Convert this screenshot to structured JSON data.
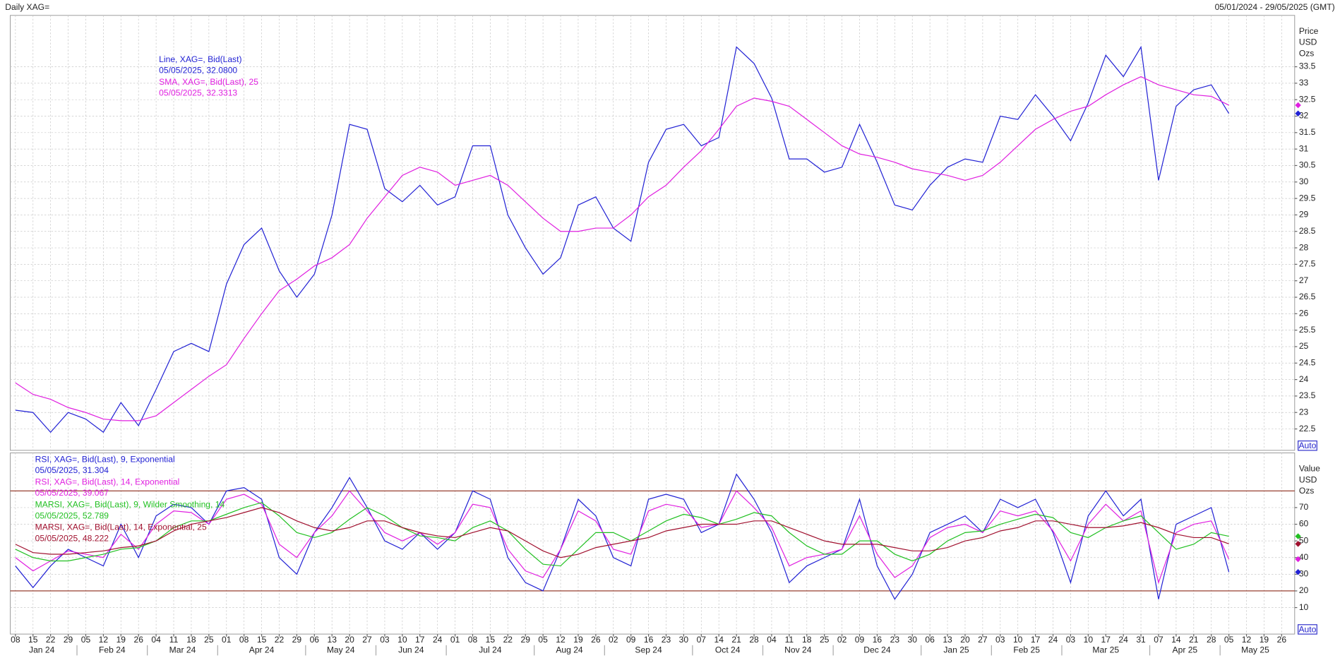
{
  "header": {
    "title": "Daily XAG=",
    "range": "05/01/2024 - 29/05/2025 (GMT)"
  },
  "chart_data": [
    {
      "type": "line",
      "y_label": [
        "Price",
        "USD",
        "Ozs"
      ],
      "auto": "Auto",
      "grid": true,
      "categories": [
        "08",
        "15",
        "22",
        "29",
        "05",
        "12",
        "19",
        "26",
        "04",
        "11",
        "18",
        "25",
        "01",
        "08",
        "15",
        "22",
        "29",
        "06",
        "13",
        "20",
        "27",
        "03",
        "10",
        "17",
        "24",
        "01",
        "08",
        "15",
        "22",
        "29",
        "05",
        "12",
        "19",
        "26",
        "02",
        "09",
        "16",
        "23",
        "30",
        "07",
        "14",
        "21",
        "28",
        "04",
        "11",
        "18",
        "25",
        "02",
        "09",
        "16",
        "23",
        "30",
        "06",
        "13",
        "20",
        "27",
        "03",
        "10",
        "17",
        "24",
        "03",
        "10",
        "17",
        "24",
        "31",
        "07",
        "14",
        "21",
        "28",
        "05",
        "12",
        "19",
        "26"
      ],
      "months": [
        "Jan 24",
        "Feb 24",
        "Mar 24",
        "Apr 24",
        "May 24",
        "Jun 24",
        "Jul 24",
        "Aug 24",
        "Sep 24",
        "Oct 24",
        "Nov 24",
        "Dec 24",
        "Jan 25",
        "Feb 25",
        "Mar 25",
        "Apr 25",
        "May 25"
      ],
      "ylim": [
        21.85,
        35.06
      ],
      "yticks": [
        22.5,
        23,
        23.5,
        24,
        24.5,
        25,
        25.5,
        26,
        26.5,
        27,
        27.5,
        28,
        28.5,
        29,
        29.5,
        30,
        30.5,
        31,
        31.5,
        32,
        32.5,
        33,
        33.5
      ],
      "series": [
        {
          "name": "Line, XAG=, Bid(Last)",
          "legend_value": "05/05/2025, 32.0800",
          "color": "#2121d4",
          "values": [
            23.07,
            23.0,
            22.4,
            23.0,
            22.8,
            22.4,
            23.3,
            22.6,
            23.7,
            24.85,
            25.1,
            24.85,
            26.9,
            28.1,
            28.6,
            27.3,
            26.5,
            27.2,
            29.0,
            31.75,
            31.6,
            29.8,
            29.4,
            29.9,
            29.3,
            29.55,
            31.1,
            31.1,
            29.0,
            28.0,
            27.2,
            27.7,
            29.3,
            29.55,
            28.6,
            28.2,
            30.6,
            31.6,
            31.75,
            31.1,
            31.35,
            34.1,
            33.6,
            32.55,
            30.7,
            30.7,
            30.3,
            30.45,
            31.75,
            30.6,
            29.3,
            29.15,
            29.9,
            30.45,
            30.7,
            30.6,
            32.0,
            31.9,
            32.65,
            32.0,
            31.25,
            32.4,
            33.85,
            33.2,
            34.1,
            30.05,
            32.3,
            32.8,
            32.95,
            32.08,
            null,
            null,
            null
          ]
        },
        {
          "name": "SMA, XAG=, Bid(Last),  25",
          "legend_value": "05/05/2025, 32.3313",
          "color": "#e020e0",
          "values": [
            23.9,
            23.55,
            23.4,
            23.15,
            23.0,
            22.8,
            22.75,
            22.75,
            22.9,
            23.3,
            23.7,
            24.1,
            24.45,
            25.25,
            26.0,
            26.7,
            27.05,
            27.45,
            27.7,
            28.1,
            28.9,
            29.55,
            30.2,
            30.45,
            30.3,
            29.9,
            30.05,
            30.2,
            29.9,
            29.4,
            28.9,
            28.5,
            28.5,
            28.6,
            28.6,
            29.0,
            29.55,
            29.9,
            30.45,
            30.95,
            31.6,
            32.3,
            32.55,
            32.45,
            32.3,
            31.9,
            31.5,
            31.1,
            30.85,
            30.75,
            30.6,
            30.4,
            30.3,
            30.2,
            30.05,
            30.2,
            30.6,
            31.1,
            31.6,
            31.9,
            32.15,
            32.3,
            32.65,
            32.95,
            33.2,
            32.95,
            32.8,
            32.65,
            32.6,
            32.3313,
            null,
            null,
            null
          ]
        }
      ]
    },
    {
      "type": "line",
      "y_label": [
        "Value",
        "USD",
        "Ozs"
      ],
      "auto": "Auto",
      "grid": true,
      "ylim": [
        -5.9,
        102.8
      ],
      "yticks": [
        10,
        20,
        30,
        40,
        50,
        60,
        70
      ],
      "levels": [
        80,
        20
      ],
      "series": [
        {
          "name": "RSI, XAG=, Bid(Last),  9, Exponential",
          "legend_value": "05/05/2025, 31.304",
          "color": "#2121d4",
          "values": [
            35,
            22,
            35,
            45,
            40,
            35,
            60,
            40,
            65,
            72,
            70,
            60,
            80,
            82,
            75,
            40,
            30,
            55,
            70,
            88,
            70,
            50,
            45,
            55,
            45,
            55,
            80,
            75,
            40,
            25,
            20,
            45,
            75,
            65,
            40,
            35,
            75,
            78,
            75,
            55,
            60,
            90,
            75,
            55,
            25,
            35,
            40,
            45,
            75,
            35,
            15,
            30,
            55,
            60,
            65,
            55,
            75,
            70,
            75,
            55,
            25,
            65,
            80,
            65,
            75,
            15,
            60,
            65,
            70,
            31.304,
            null,
            null,
            null
          ]
        },
        {
          "name": "RSI, XAG=, Bid(Last),  14, Exponential",
          "legend_value": "05/05/2025, 39.067",
          "color": "#e020e0",
          "values": [
            40,
            32,
            38,
            44,
            42,
            40,
            54,
            45,
            60,
            68,
            67,
            60,
            75,
            78,
            72,
            48,
            40,
            55,
            65,
            80,
            68,
            55,
            50,
            55,
            48,
            55,
            72,
            70,
            45,
            32,
            28,
            45,
            68,
            62,
            45,
            42,
            68,
            72,
            70,
            58,
            60,
            80,
            70,
            58,
            35,
            40,
            42,
            45,
            65,
            42,
            28,
            35,
            52,
            58,
            60,
            55,
            68,
            65,
            68,
            56,
            38,
            60,
            72,
            62,
            68,
            25,
            55,
            60,
            62,
            39.067,
            null,
            null,
            null
          ]
        },
        {
          "name": "MARSI, XAG=, Bid(Last),  9, Wilder Smoothing, 14",
          "legend_value": "05/05/2025, 52.789",
          "color": "#22c022",
          "values": [
            45,
            40,
            38,
            38,
            40,
            42,
            45,
            46,
            50,
            58,
            62,
            62,
            66,
            70,
            73,
            65,
            55,
            52,
            55,
            63,
            70,
            65,
            58,
            53,
            52,
            50,
            58,
            62,
            56,
            45,
            36,
            35,
            45,
            55,
            55,
            50,
            56,
            62,
            66,
            64,
            60,
            63,
            67,
            65,
            55,
            47,
            42,
            42,
            50,
            50,
            42,
            38,
            42,
            50,
            55,
            56,
            60,
            63,
            66,
            64,
            55,
            52,
            58,
            62,
            65,
            55,
            45,
            48,
            55,
            52.789,
            null,
            null,
            null
          ]
        },
        {
          "name": "MARSI, XAG=, Bid(Last),  14, Exponential, 25",
          "legend_value": "05/05/2025, 48.222",
          "color": "#a0102e",
          "values": [
            48,
            43,
            42,
            42,
            43,
            44,
            46,
            47,
            50,
            56,
            60,
            62,
            64,
            67,
            70,
            67,
            62,
            58,
            56,
            58,
            62,
            62,
            58,
            55,
            53,
            52,
            55,
            58,
            56,
            50,
            44,
            40,
            42,
            46,
            48,
            50,
            52,
            56,
            58,
            60,
            60,
            60,
            62,
            62,
            58,
            54,
            50,
            48,
            48,
            48,
            46,
            44,
            44,
            46,
            50,
            52,
            56,
            58,
            62,
            62,
            60,
            58,
            58,
            59,
            61,
            58,
            54,
            52,
            52,
            48.222,
            null,
            null,
            null
          ]
        }
      ]
    }
  ]
}
